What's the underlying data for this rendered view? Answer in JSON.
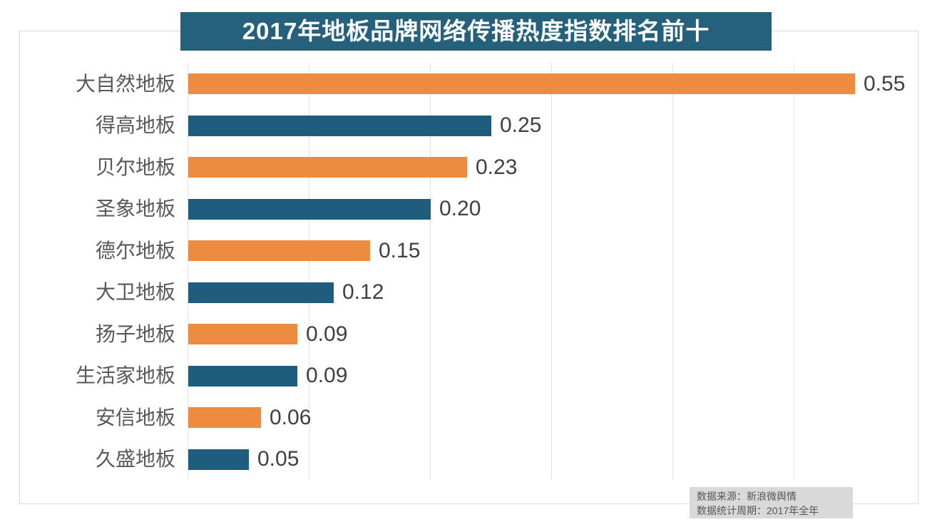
{
  "title_banner": "2017年地板品牌网络传播热度指数排名前十",
  "source": {
    "line1": "数据来源：新浪微舆情",
    "line2": "数据统计周期：2017年全年"
  },
  "colors": {
    "banner_bg": "#25617c",
    "bar_orange": "#ed8c40",
    "bar_blue": "#1f5c7e",
    "gridline": "#e2e2e2",
    "frame_border": "#d9d9d9",
    "category_text": "#595959",
    "value_text": "#404040",
    "source_bg": "#d9d9d9",
    "source_text": "#555555"
  },
  "chart_data": {
    "type": "bar",
    "orientation": "horizontal",
    "title": "2017年地板品牌网络传播热度指数排名前十",
    "categories": [
      "大自然地板",
      "得高地板",
      "贝尔地板",
      "圣象地板",
      "德尔地板",
      "大卫地板",
      "扬子地板",
      "生活家地板",
      "安信地板",
      "久盛地板"
    ],
    "values": [
      0.55,
      0.25,
      0.23,
      0.2,
      0.15,
      0.12,
      0.09,
      0.09,
      0.06,
      0.05
    ],
    "data_labels": [
      "0.55",
      "0.25",
      "0.23",
      "0.20",
      "0.15",
      "0.12",
      "0.09",
      "0.09",
      "0.06",
      "0.05"
    ],
    "bar_color_sequence": [
      "orange",
      "blue",
      "orange",
      "blue",
      "orange",
      "blue",
      "orange",
      "blue",
      "orange",
      "blue"
    ],
    "xlabel": "",
    "ylabel": "",
    "xlim": [
      0,
      0.6
    ],
    "grid": true,
    "gridline_interval": 0.1,
    "legend": false
  }
}
